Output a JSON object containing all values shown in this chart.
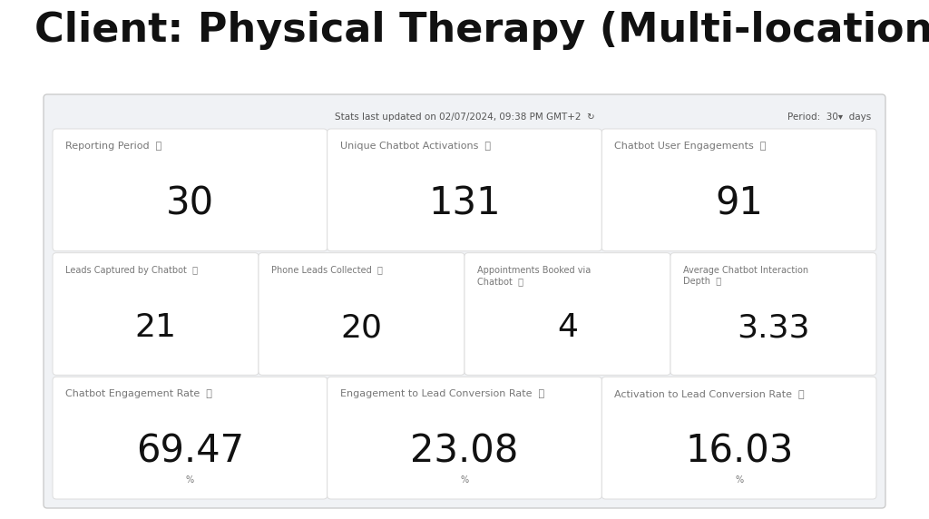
{
  "title": "Client: Physical Therapy (Multi-location)",
  "subtitle": "Stats last updated on 02/07/2024, 09:38 PM GMT+2  ↻",
  "period_label": "Period:",
  "period_value": "30",
  "period_arrow": "▾",
  "period_unit": "days",
  "panel_bg": "#f0f2f5",
  "card_bg": "#ffffff",
  "title_color": "#111111",
  "label_color": "#777777",
  "value_color": "#111111",
  "subtitle_color": "#555555",
  "border_color": "#dddddd",
  "panel_border": "#cccccc",
  "row1": [
    {
      "label": "Reporting Period",
      "value": "30",
      "unit": ""
    },
    {
      "label": "Unique Chatbot Activations",
      "value": "131",
      "unit": ""
    },
    {
      "label": "Chatbot User Engagements",
      "value": "91",
      "unit": ""
    }
  ],
  "row2": [
    {
      "label": "Leads Captured by Chatbot",
      "value": "21",
      "unit": ""
    },
    {
      "label": "Phone Leads Collected",
      "value": "20",
      "unit": ""
    },
    {
      "label": "Appointments Booked via\nChatbot",
      "value": "4",
      "unit": ""
    },
    {
      "label": "Average Chatbot Interaction\nDepth",
      "value": "3.33",
      "unit": ""
    }
  ],
  "row3": [
    {
      "label": "Chatbot Engagement Rate",
      "value": "69.47",
      "unit": "%"
    },
    {
      "label": "Engagement to Lead Conversion Rate",
      "value": "23.08",
      "unit": "%"
    },
    {
      "label": "Activation to Lead Conversion Rate",
      "value": "16.03",
      "unit": "%"
    }
  ],
  "title_fontsize": 32,
  "label_fontsize": 8,
  "label_fontsize_sm": 7,
  "value_fontsize_lg": 30,
  "value_fontsize_md": 26,
  "unit_fontsize": 7
}
